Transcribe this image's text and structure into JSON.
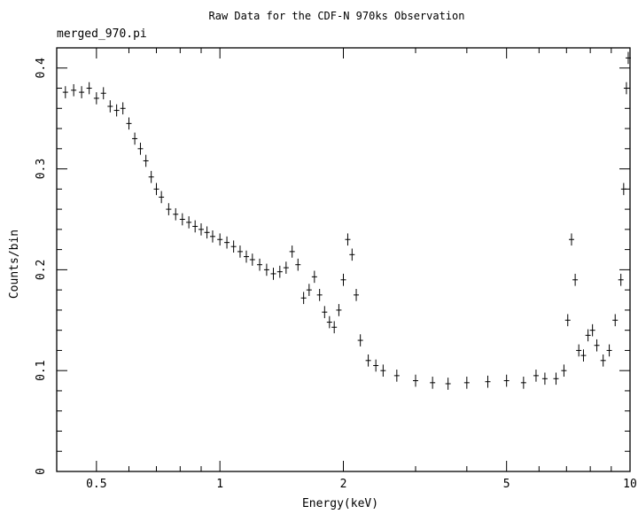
{
  "chart_data": {
    "type": "scatter",
    "title": "Raw Data for the CDF-N 970ks Observation",
    "subtitle": "merged_970.pi",
    "xlabel": "Energy(keV)",
    "ylabel": "Counts/bin",
    "xscale": "log",
    "xlim": [
      0.4,
      10
    ],
    "ylim": [
      0,
      0.42
    ],
    "xticks": [
      {
        "value": 0.5,
        "label": "0.5"
      },
      {
        "value": 1,
        "label": "1"
      },
      {
        "value": 2,
        "label": "2"
      },
      {
        "value": 5,
        "label": "5"
      },
      {
        "value": 10,
        "label": "10"
      }
    ],
    "yticks": [
      {
        "value": 0,
        "label": "0"
      },
      {
        "value": 0.1,
        "label": "0.1"
      },
      {
        "value": 0.2,
        "label": "0.2"
      },
      {
        "value": 0.3,
        "label": "0.3"
      },
      {
        "value": 0.4,
        "label": "0.4"
      }
    ],
    "grid": false,
    "marker": "crosses with error bars",
    "color": "#000000",
    "series": [
      {
        "x": [
          0.42,
          0.44,
          0.46,
          0.48,
          0.5,
          0.52,
          0.54,
          0.56,
          0.58,
          0.6,
          0.62,
          0.64,
          0.66,
          0.68,
          0.7,
          0.72,
          0.75,
          0.78,
          0.81,
          0.84,
          0.87,
          0.9,
          0.93,
          0.96,
          1.0,
          1.04,
          1.08,
          1.12,
          1.16,
          1.2,
          1.25,
          1.3,
          1.35,
          1.4,
          1.45,
          1.5,
          1.55,
          1.6,
          1.65,
          1.7,
          1.75,
          1.8,
          1.85,
          1.9,
          1.95,
          2.0,
          2.05,
          2.1,
          2.15,
          2.2,
          2.3,
          2.4,
          2.5,
          2.7,
          3.0,
          3.3,
          3.6,
          4.0,
          4.5,
          5.0,
          5.5,
          5.9,
          6.2,
          6.6,
          6.9,
          7.05,
          7.2,
          7.35,
          7.5,
          7.7,
          7.9,
          8.1,
          8.3,
          8.6,
          8.9,
          9.2,
          9.5,
          9.65,
          9.8,
          9.9
        ],
        "y": [
          0.376,
          0.378,
          0.376,
          0.38,
          0.37,
          0.375,
          0.362,
          0.358,
          0.36,
          0.345,
          0.33,
          0.32,
          0.308,
          0.292,
          0.28,
          0.272,
          0.26,
          0.255,
          0.25,
          0.247,
          0.243,
          0.24,
          0.237,
          0.233,
          0.23,
          0.227,
          0.223,
          0.218,
          0.213,
          0.21,
          0.205,
          0.2,
          0.196,
          0.198,
          0.202,
          0.218,
          0.205,
          0.172,
          0.18,
          0.193,
          0.175,
          0.158,
          0.148,
          0.143,
          0.16,
          0.19,
          0.23,
          0.215,
          0.175,
          0.13,
          0.11,
          0.105,
          0.1,
          0.095,
          0.09,
          0.088,
          0.087,
          0.088,
          0.089,
          0.09,
          0.088,
          0.095,
          0.092,
          0.092,
          0.1,
          0.15,
          0.23,
          0.19,
          0.12,
          0.115,
          0.135,
          0.14,
          0.125,
          0.11,
          0.12,
          0.15,
          0.19,
          0.28,
          0.38,
          0.41
        ],
        "yerr": 0.006
      }
    ]
  }
}
